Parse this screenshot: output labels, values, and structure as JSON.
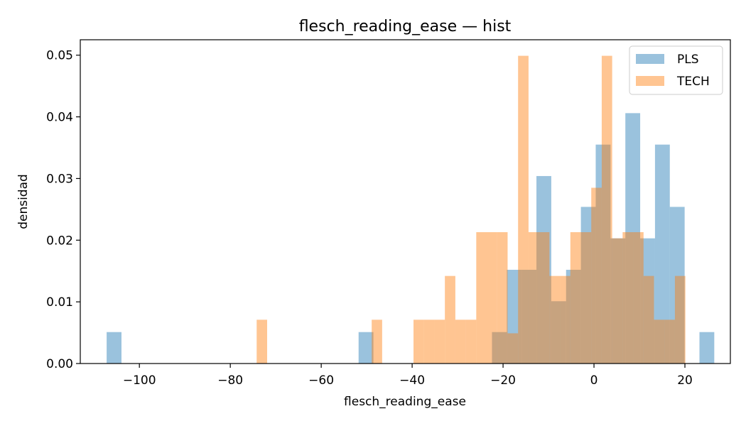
{
  "chart_data": {
    "type": "histogram",
    "title": "flesch_reading_ease — hist",
    "xlabel": "flesch_reading_ease",
    "ylabel": "densidad",
    "xlim": [
      -113,
      30
    ],
    "ylim": [
      0,
      0.0525
    ],
    "x_ticks": [
      -100,
      -80,
      -60,
      -40,
      -20,
      0,
      20
    ],
    "x_tick_labels": [
      "−100",
      "−80",
      "−60",
      "−40",
      "−20",
      "0",
      "20"
    ],
    "y_ticks": [
      0,
      0.01,
      0.02,
      0.03,
      0.04,
      0.05
    ],
    "y_tick_labels": [
      "0.00",
      "0.01",
      "0.02",
      "0.03",
      "0.04",
      "0.05"
    ],
    "legend_position": "top-right",
    "grid": false,
    "series": [
      {
        "name": "PLS",
        "color": "#1f77b4",
        "opacity": 0.45,
        "bin_start": -107.2,
        "bin_width": 3.26,
        "density": [
          0.0051,
          0,
          0,
          0,
          0,
          0,
          0,
          0,
          0,
          0,
          0,
          0,
          0,
          0,
          0,
          0,
          0,
          0.0051,
          0,
          0,
          0,
          0,
          0,
          0,
          0,
          0,
          0.0051,
          0.0152,
          0.0152,
          0.0304,
          0.0101,
          0.0152,
          0.0254,
          0.0355,
          0.0203,
          0.0406,
          0.0203,
          0.0355,
          0.0254,
          0,
          0.0051
        ]
      },
      {
        "name": "TECH",
        "color": "#ff7f0e",
        "opacity": 0.45,
        "bin_start": -74.2,
        "bin_width": 2.3,
        "density": [
          0.0071,
          0,
          0,
          0,
          0,
          0,
          0,
          0,
          0,
          0,
          0,
          0.0071,
          0,
          0,
          0,
          0.0071,
          0.0071,
          0.0071,
          0.0142,
          0.0071,
          0.0071,
          0.0213,
          0.0213,
          0.0213,
          0.0049,
          0.0499,
          0.0213,
          0.0213,
          0.0142,
          0.0142,
          0.0213,
          0.0213,
          0.0285,
          0.0499,
          0.0203,
          0.0213,
          0.0213,
          0.0142,
          0.0071,
          0.0071,
          0.0142
        ]
      }
    ]
  }
}
